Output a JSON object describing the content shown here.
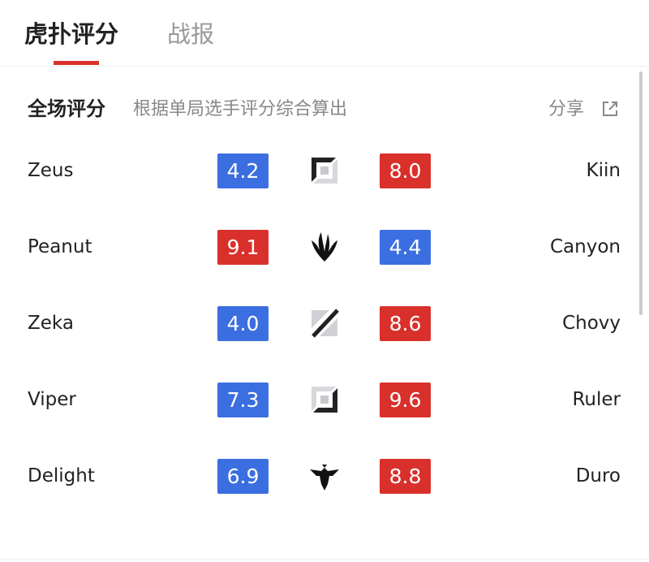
{
  "tabs": [
    {
      "label": "虎扑评分",
      "active": true
    },
    {
      "label": "战报",
      "active": false
    }
  ],
  "section": {
    "title": "全场评分",
    "subtitle": "根据单局选手评分综合算出",
    "share_label": "分享",
    "share_icon": "external-link-icon"
  },
  "colors": {
    "low": "#3b6ee0",
    "high": "#d9302c",
    "accent": "#d9302c"
  },
  "rows": [
    {
      "left": "Zeus",
      "left_score": "4.2",
      "left_color": "#3b6ee0",
      "role_icon": "top-lane-icon",
      "right_score": "8.0",
      "right_color": "#d9302c",
      "right": "Kiin"
    },
    {
      "left": "Peanut",
      "left_score": "9.1",
      "left_color": "#d9302c",
      "role_icon": "jungle-icon",
      "right_score": "4.4",
      "right_color": "#3b6ee0",
      "right": "Canyon"
    },
    {
      "left": "Zeka",
      "left_score": "4.0",
      "left_color": "#3b6ee0",
      "role_icon": "mid-lane-icon",
      "right_score": "8.6",
      "right_color": "#d9302c",
      "right": "Chovy"
    },
    {
      "left": "Viper",
      "left_score": "7.3",
      "left_color": "#3b6ee0",
      "role_icon": "bot-lane-icon",
      "right_score": "9.6",
      "right_color": "#d9302c",
      "right": "Ruler"
    },
    {
      "left": "Delight",
      "left_score": "6.9",
      "left_color": "#3b6ee0",
      "role_icon": "support-icon",
      "right_score": "8.8",
      "right_color": "#d9302c",
      "right": "Duro"
    }
  ]
}
